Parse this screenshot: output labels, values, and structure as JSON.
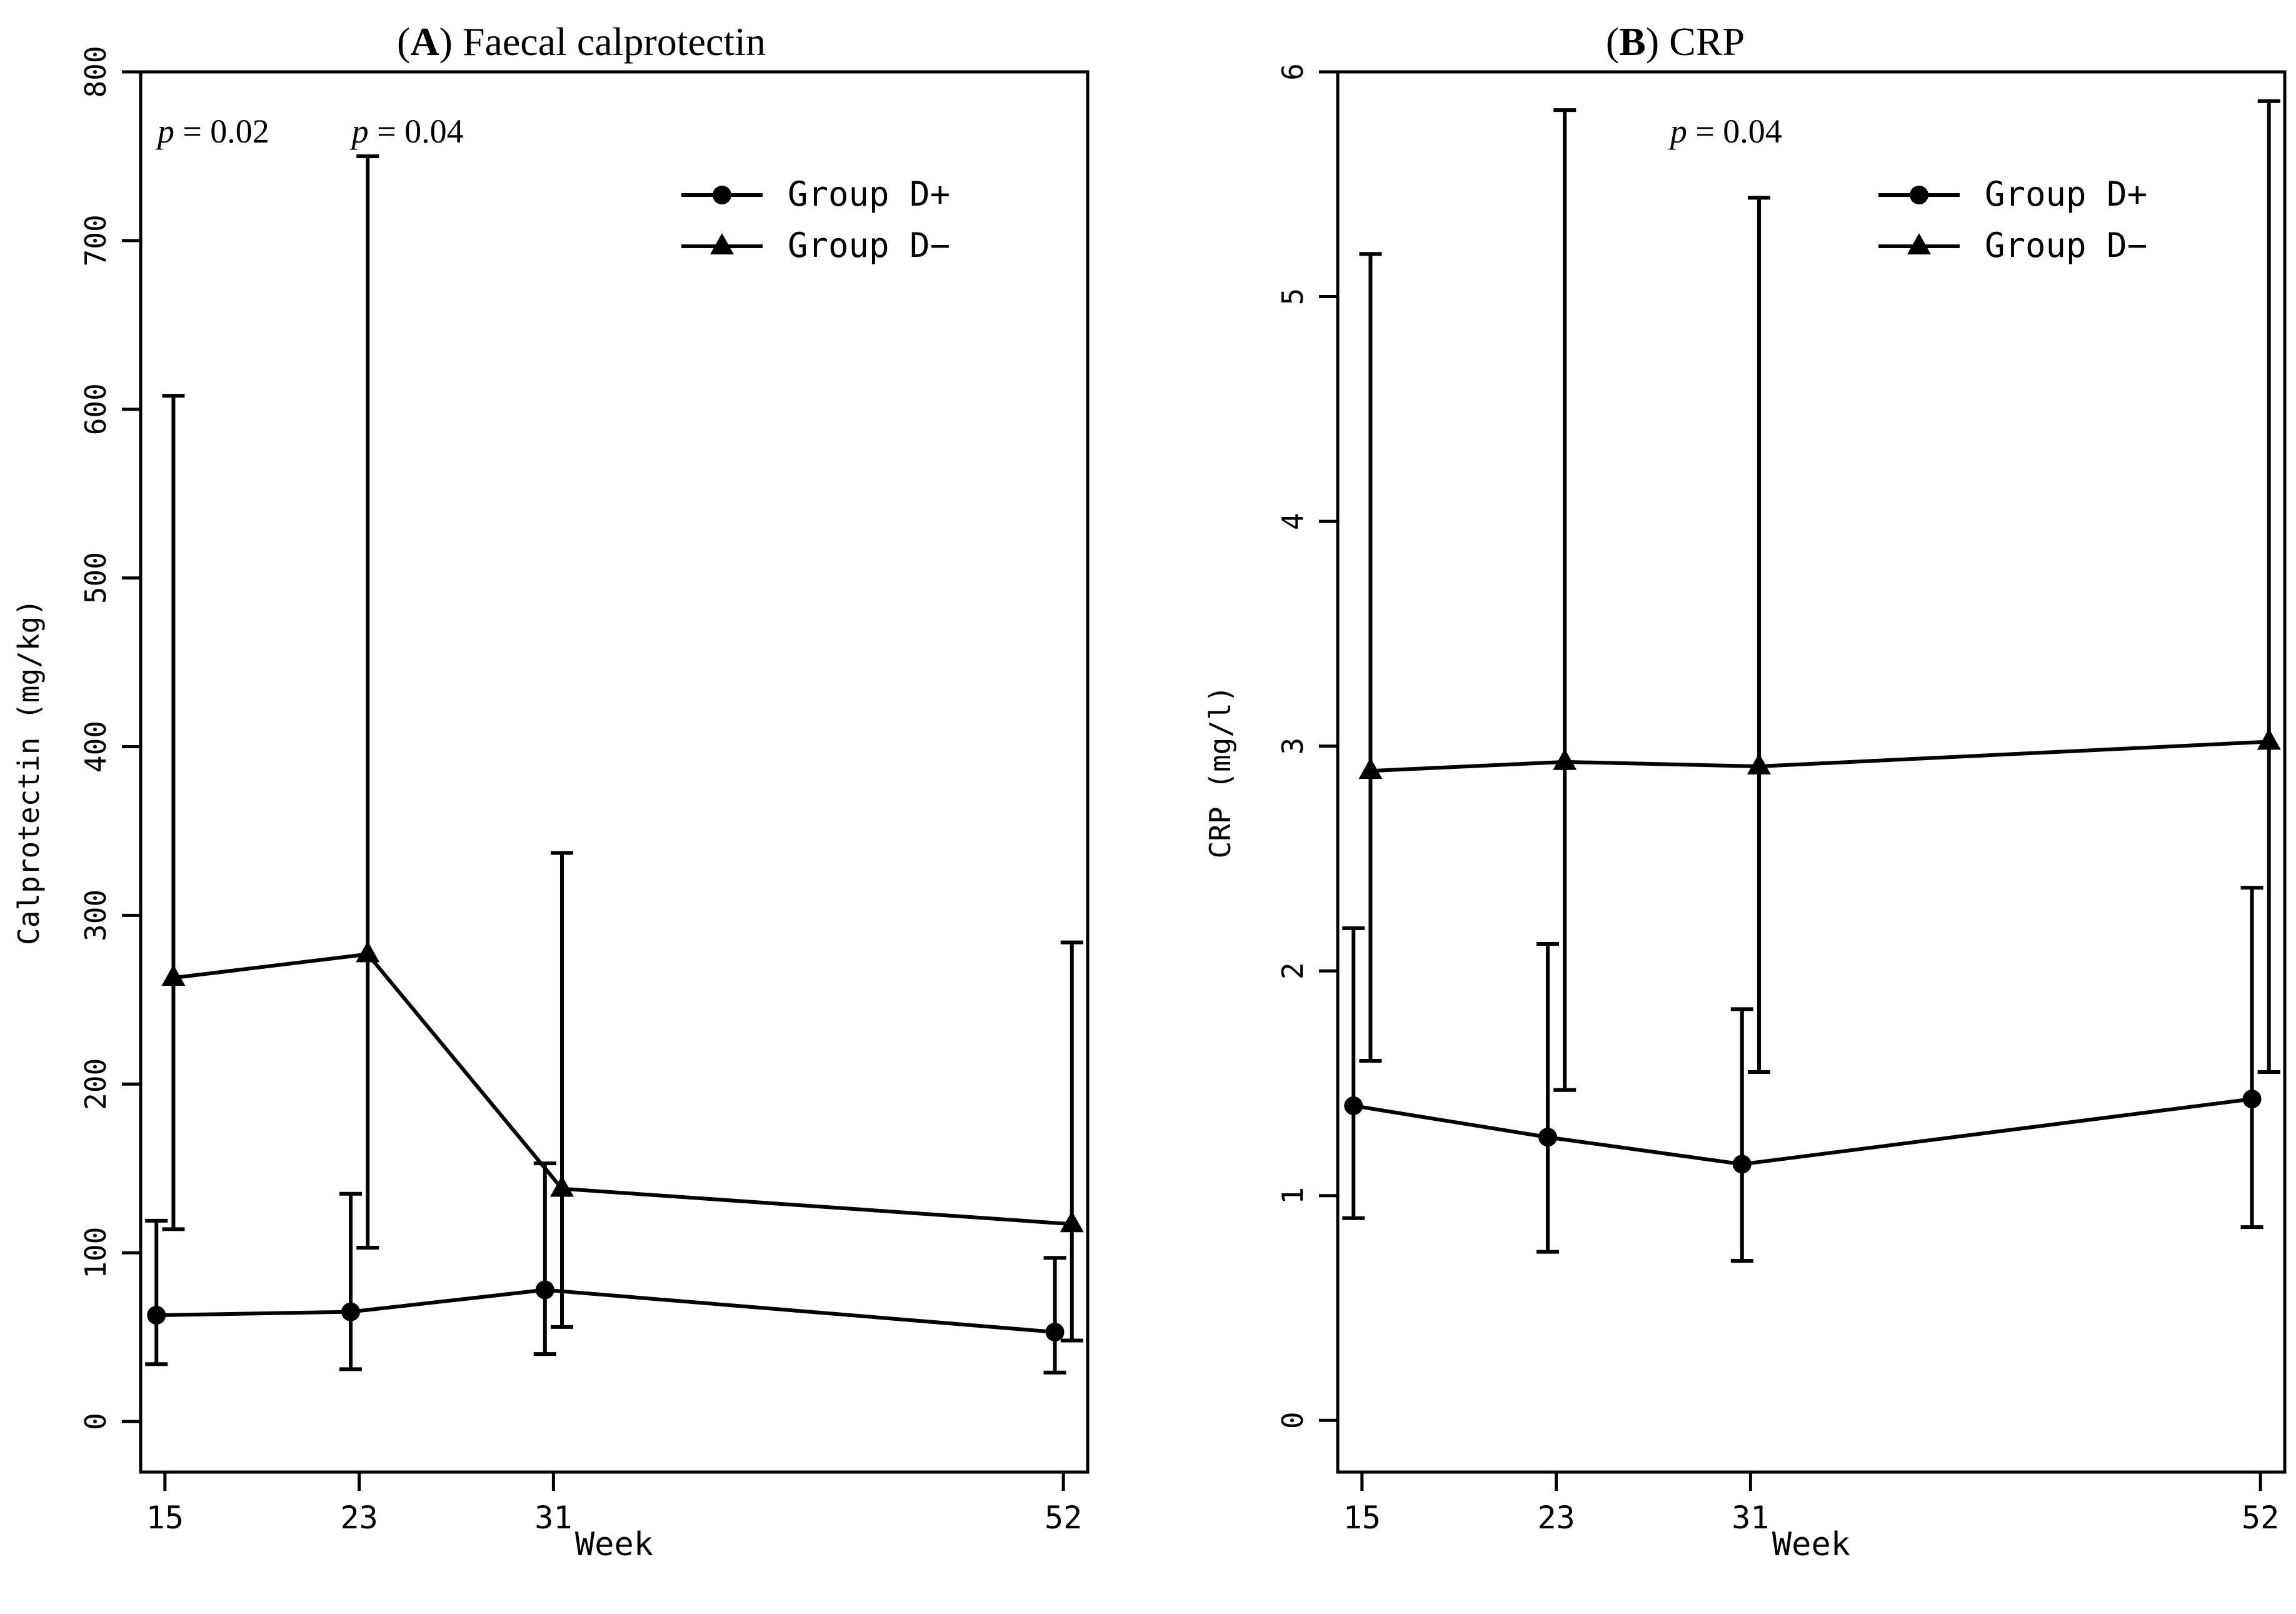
{
  "chart_data": [
    {
      "type": "line",
      "panel_letter": "A",
      "title": "Faecal calprotectin",
      "xlabel": "Week",
      "ylabel": "Calprotectin (mg/kg)",
      "x": [
        15,
        23,
        31,
        52
      ],
      "xlim": [
        14,
        53
      ],
      "ylim": [
        -30,
        800
      ],
      "yticks": [
        0,
        100,
        200,
        300,
        400,
        500,
        600,
        700,
        800
      ],
      "xticks": [
        15,
        23,
        31,
        52
      ],
      "legend_placement": "top-right",
      "annotations": [
        {
          "italic": "p",
          "text": " = 0.02",
          "x": 15
        },
        {
          "italic": "p",
          "text": " = 0.04",
          "x": 23
        }
      ],
      "series": [
        {
          "name": "Group D+",
          "marker": "circle",
          "values": [
            63,
            65,
            78,
            53
          ],
          "lower": [
            34,
            31,
            40,
            29
          ],
          "upper": [
            119,
            135,
            153,
            97
          ],
          "offset": -0.35
        },
        {
          "name": "Group D−",
          "marker": "triangle",
          "values": [
            263,
            277,
            138,
            117
          ],
          "lower": [
            114,
            103,
            56,
            48
          ],
          "upper": [
            608,
            750,
            337,
            284
          ],
          "offset": 0.35
        }
      ]
    },
    {
      "type": "line",
      "panel_letter": "B",
      "title": "CRP",
      "xlabel": "Week",
      "ylabel": "CRP (mg/l)",
      "x": [
        15,
        23,
        31,
        52
      ],
      "xlim": [
        14,
        53
      ],
      "ylim": [
        -0.23,
        6
      ],
      "yticks": [
        0,
        1,
        2,
        3,
        4,
        5,
        6
      ],
      "xticks": [
        15,
        23,
        31,
        52
      ],
      "legend_placement": "top-right",
      "annotations": [
        {
          "italic": "p",
          "text": " = 0.04",
          "x": 28
        }
      ],
      "series": [
        {
          "name": "Group D+",
          "marker": "circle",
          "values": [
            1.4,
            1.26,
            1.14,
            1.43
          ],
          "lower": [
            0.9,
            0.75,
            0.71,
            0.86
          ],
          "upper": [
            2.19,
            2.12,
            1.83,
            2.37
          ],
          "offset": -0.35
        },
        {
          "name": "Group D−",
          "marker": "triangle",
          "values": [
            2.89,
            2.93,
            2.91,
            3.02
          ],
          "lower": [
            1.6,
            1.47,
            1.55,
            1.55
          ],
          "upper": [
            5.19,
            5.83,
            5.44,
            5.87
          ],
          "offset": 0.35
        }
      ]
    }
  ]
}
